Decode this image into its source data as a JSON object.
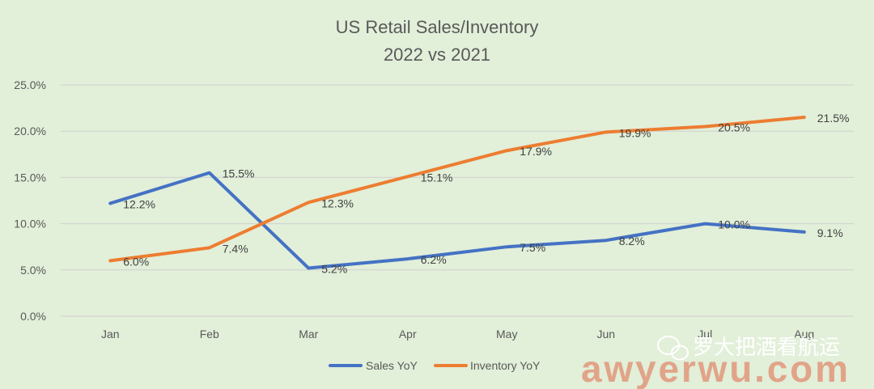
{
  "chart_data": {
    "type": "line",
    "title": [
      "US Retail Sales/Inventory",
      "2022 vs 2021"
    ],
    "categories": [
      "Jan",
      "Feb",
      "Mar",
      "Apr",
      "May",
      "Jun",
      "Jul",
      "Aug"
    ],
    "ylim": [
      0,
      25
    ],
    "yticks": [
      "0.0%",
      "5.0%",
      "10.0%",
      "15.0%",
      "20.0%",
      "25.0%"
    ],
    "grid": true,
    "legend_position": "bottom",
    "series": [
      {
        "name": "Sales YoY",
        "color": "#4472c4",
        "values": [
          12.2,
          15.5,
          5.2,
          6.2,
          7.5,
          8.2,
          10.0,
          9.1
        ],
        "labels": [
          "12.2%",
          "15.5%",
          "5.2%",
          "6.2%",
          "7.5%",
          "8.2%",
          "10.0%",
          "9.1%"
        ]
      },
      {
        "name": "Inventory YoY",
        "color": "#ed7d31",
        "values": [
          6.0,
          7.4,
          12.3,
          15.1,
          17.9,
          19.9,
          20.5,
          21.5
        ],
        "labels": [
          "6.0%",
          "7.4%",
          "12.3%",
          "15.1%",
          "17.9%",
          "19.9%",
          "20.5%",
          "21.5%"
        ]
      }
    ]
  },
  "watermark": {
    "channel": "罗大把酒看航运",
    "site": "awyerwu.com",
    "icon": "wechat-icon"
  }
}
